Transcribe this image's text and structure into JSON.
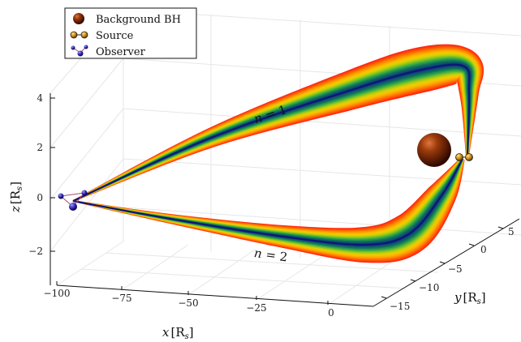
{
  "chart_data": {
    "type": "line",
    "projection": "3d",
    "xlabel": "x [R_s]",
    "ylabel": "y [R_s]",
    "zlabel": "z [R_s]",
    "xlabel_parts": {
      "var": "x",
      "unit": "[R",
      "sub": "s",
      "close": "]"
    },
    "ylabel_parts": {
      "var": "y",
      "unit": "[R",
      "sub": "s",
      "close": "]"
    },
    "zlabel_parts": {
      "var": "z",
      "unit": "[R",
      "sub": "s",
      "close": "]"
    },
    "xlim": [
      -100,
      5
    ],
    "ylim": [
      -17,
      8
    ],
    "zlim": [
      -3.2,
      4.2
    ],
    "x_ticks": [
      -100,
      -75,
      -50,
      -25,
      0
    ],
    "x_tick_labels": [
      "−100",
      "−75",
      "−50",
      "−25",
      "0"
    ],
    "y_ticks": [
      -15,
      -10,
      -5,
      0,
      5
    ],
    "y_tick_labels": [
      "−15",
      "−10",
      "−5",
      "0",
      "5"
    ],
    "z_ticks": [
      -2,
      0,
      2,
      4
    ],
    "z_tick_labels": [
      "−2",
      "0",
      "2",
      "4"
    ],
    "grid": true,
    "legend_position": "top-left",
    "legend": [
      {
        "label": "Background BH",
        "marker": "sphere",
        "color": "#7a2a06"
      },
      {
        "label": "Source",
        "marker": "binary",
        "color": "#c8860b"
      },
      {
        "label": "Observer",
        "marker": "triad",
        "color": "#2a1fa8"
      }
    ],
    "annotations": [
      {
        "text": "n = 1",
        "var": "n",
        "rest": " = 1"
      },
      {
        "text": "n = 2",
        "var": "n",
        "rest": " = 2"
      }
    ],
    "colors": {
      "geodesic_center": "#10157a",
      "band_inner": "#0f5f3f",
      "band_outer": "#ff1a1a",
      "grid": "#e6e6e6"
    },
    "series": [
      {
        "name": "n = 1",
        "x": [
          -95,
          -70,
          -45,
          -20,
          -5,
          0
        ],
        "y": [
          -12,
          -9,
          -5,
          0,
          3,
          2
        ],
        "z": [
          -0.1,
          0.9,
          1.9,
          2.9,
          3.5,
          1.6
        ]
      },
      {
        "name": "n = 2",
        "x": [
          -95,
          -70,
          -45,
          -20,
          -5,
          0
        ],
        "y": [
          -12,
          -11,
          -10,
          -9,
          -4,
          2
        ],
        "z": [
          -0.1,
          -0.4,
          -1.0,
          -1.7,
          -0.7,
          1.6
        ]
      }
    ],
    "objects": [
      {
        "name": "Background BH",
        "x": 1.5,
        "y": 6,
        "z": 1.8
      },
      {
        "name": "Source",
        "x": 0,
        "y": 2,
        "z": 1.6
      },
      {
        "name": "Observer",
        "x": -96,
        "y": -12,
        "z": -0.1
      }
    ]
  }
}
